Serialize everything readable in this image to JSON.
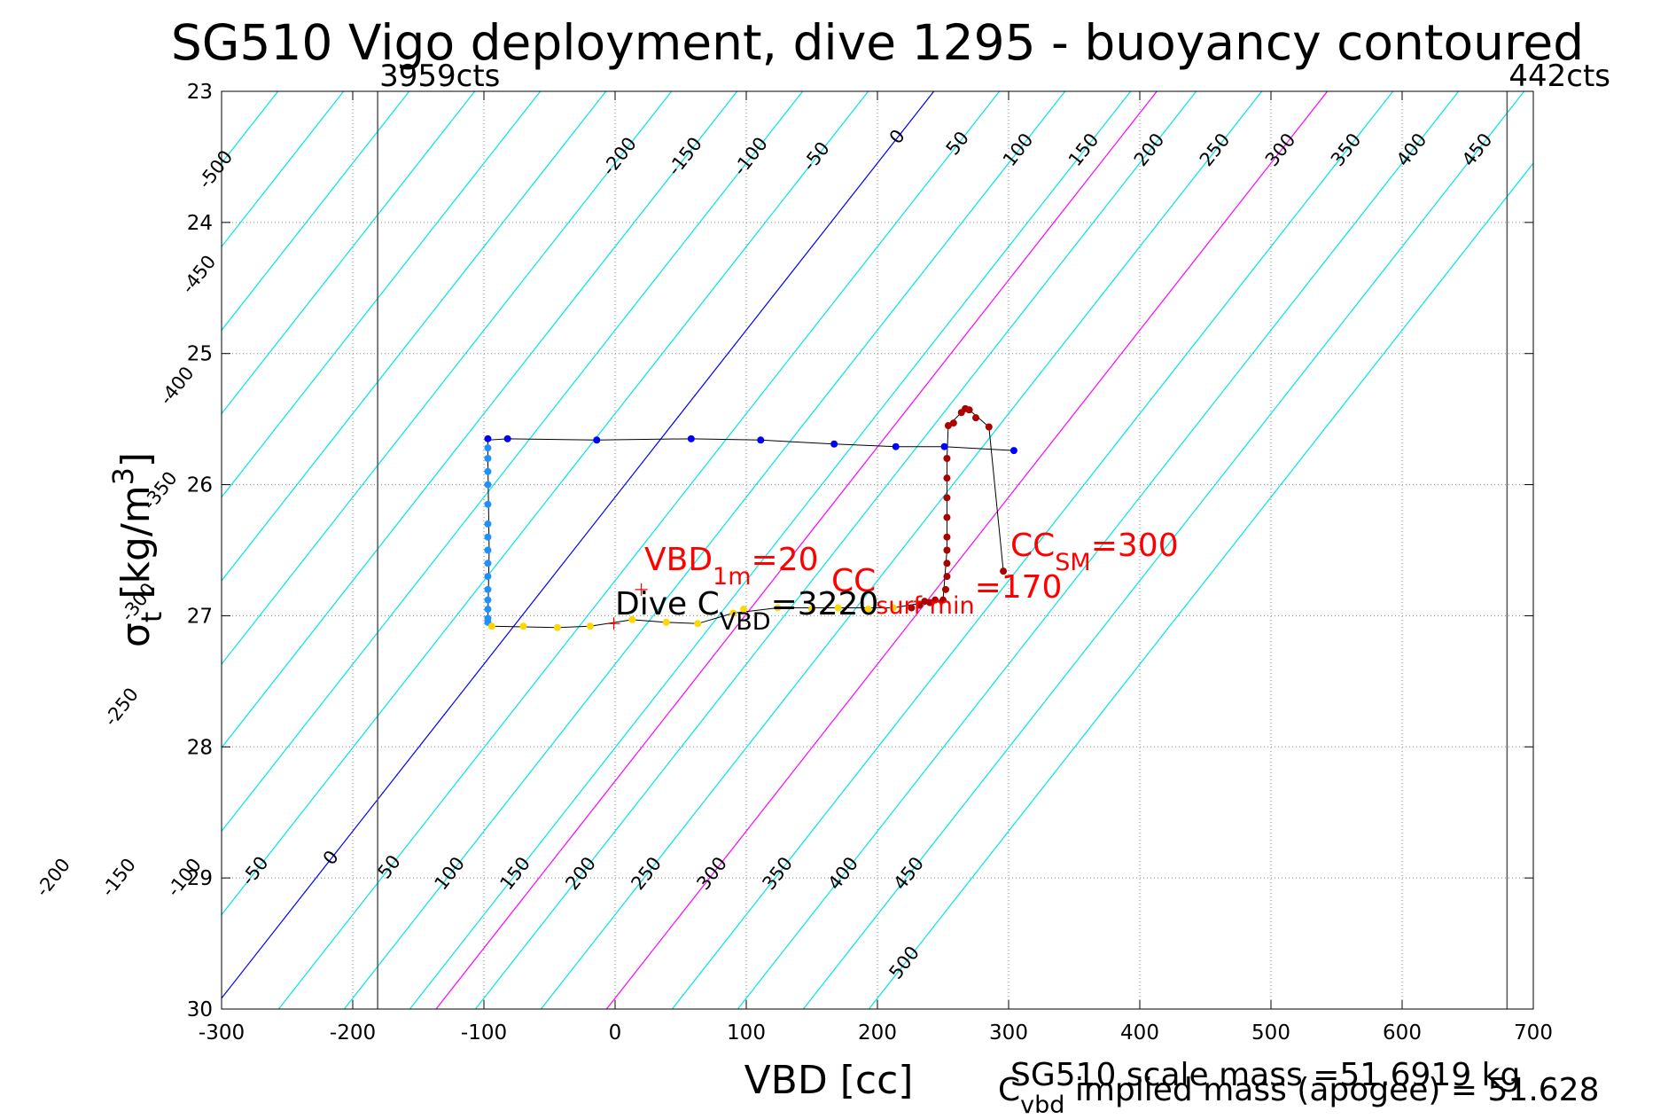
{
  "chart_data": {
    "type": "scatter",
    "title": "SG510 Vigo deployment, dive 1295 - buoyancy contoured",
    "xlabel": "VBD [cc]",
    "ylabel": {
      "base": "σ",
      "sub": "t",
      "rest": " [kg/m",
      "sup": "3",
      "close": "]"
    },
    "xlim": [
      -300,
      700
    ],
    "ylim": [
      30,
      23
    ],
    "xticks": [
      -300,
      -200,
      -100,
      0,
      100,
      200,
      300,
      400,
      500,
      600,
      700
    ],
    "yticks": [
      23,
      24,
      25,
      26,
      27,
      28,
      29,
      30
    ],
    "grid": true,
    "colors": {
      "contour": "#00e5e5",
      "zero_contour": "#0000ff",
      "limit_contour": "#ff00ff",
      "limit_line": "#555555",
      "down_points": "#0000ff",
      "down_points_deep": "#1e90ff",
      "bottom_points": "#ffd700",
      "up_points": "#aa0000",
      "path": "#000000",
      "annotation": "#ff0000"
    },
    "contours": {
      "values": [
        -500,
        -450,
        -400,
        -350,
        -300,
        -250,
        -200,
        -150,
        -100,
        -50,
        0,
        50,
        100,
        150,
        200,
        250,
        300,
        350,
        400,
        450,
        500
      ],
      "slope_cc_per_sigma": -78.5,
      "offset_at_sigma_23": 243,
      "highlight_zero": 0,
      "highlight_limits": [
        170,
        300
      ],
      "top_labels": [
        {
          "text": "-500",
          "value": -500,
          "sigma": 23.6
        },
        {
          "text": "-450",
          "value": -450,
          "sigma": 24.4
        },
        {
          "text": "-400",
          "value": -400,
          "sigma": 25.25
        },
        {
          "text": "-350",
          "value": -350,
          "sigma": 26.05
        },
        {
          "text": "-300",
          "value": -300,
          "sigma": 26.9
        },
        {
          "text": "-250",
          "value": -250,
          "sigma": 27.7
        },
        {
          "text": "-200",
          "value": -200,
          "sigma": 23.5
        },
        {
          "text": "-150",
          "value": -150,
          "sigma": 23.5
        },
        {
          "text": "-100",
          "value": -100,
          "sigma": 23.5
        },
        {
          "text": "-50",
          "value": -50,
          "sigma": 23.5
        },
        {
          "text": "0",
          "value": 0,
          "sigma": 23.35
        },
        {
          "text": "50",
          "value": 50,
          "sigma": 23.4
        },
        {
          "text": "100",
          "value": 100,
          "sigma": 23.45
        },
        {
          "text": "150",
          "value": 150,
          "sigma": 23.45
        },
        {
          "text": "200",
          "value": 200,
          "sigma": 23.45
        },
        {
          "text": "250",
          "value": 250,
          "sigma": 23.45
        },
        {
          "text": "300",
          "value": 300,
          "sigma": 23.45
        },
        {
          "text": "350",
          "value": 350,
          "sigma": 23.45
        },
        {
          "text": "400",
          "value": 400,
          "sigma": 23.45
        },
        {
          "text": "450",
          "value": 450,
          "sigma": 23.45
        }
      ],
      "bottom_labels": [
        {
          "text": "-200",
          "value": -200,
          "sigma": 29.0
        },
        {
          "text": "-150",
          "value": -150,
          "sigma": 29.0
        },
        {
          "text": "-100",
          "value": -100,
          "sigma": 29.0
        },
        {
          "text": "-50",
          "value": -50,
          "sigma": 28.95
        },
        {
          "text": "0",
          "value": 0,
          "sigma": 28.85
        },
        {
          "text": "50",
          "value": 50,
          "sigma": 28.92
        },
        {
          "text": "100",
          "value": 100,
          "sigma": 28.97
        },
        {
          "text": "150",
          "value": 150,
          "sigma": 28.97
        },
        {
          "text": "200",
          "value": 200,
          "sigma": 28.97
        },
        {
          "text": "250",
          "value": 250,
          "sigma": 28.97
        },
        {
          "text": "300",
          "value": 300,
          "sigma": 28.97
        },
        {
          "text": "350",
          "value": 350,
          "sigma": 28.97
        },
        {
          "text": "400",
          "value": 400,
          "sigma": 28.97
        },
        {
          "text": "450",
          "value": 450,
          "sigma": 28.97
        },
        {
          "text": "500",
          "value": 500,
          "sigma": 29.65
        }
      ]
    },
    "limits": [
      {
        "label": "3959cts",
        "vbd": -181
      },
      {
        "label": "442cts",
        "vbd": 680
      }
    ],
    "series": [
      {
        "kind": "down",
        "color": "down_points",
        "points": [
          [
            -97,
            25.65
          ],
          [
            -82,
            25.65
          ],
          [
            -14,
            25.66
          ],
          [
            58,
            25.65
          ],
          [
            111,
            25.66
          ],
          [
            167,
            25.69
          ],
          [
            214,
            25.71
          ],
          [
            251,
            25.71
          ],
          [
            304,
            25.74
          ]
        ]
      },
      {
        "kind": "down-deep",
        "color": "down_points_deep",
        "points": [
          [
            -97,
            25.72
          ],
          [
            -97,
            25.8
          ],
          [
            -97,
            25.9
          ],
          [
            -97,
            26.0
          ],
          [
            -97,
            26.15
          ],
          [
            -97,
            26.3
          ],
          [
            -97,
            26.4
          ],
          [
            -97,
            26.5
          ],
          [
            -97,
            26.6
          ],
          [
            -97,
            26.7
          ],
          [
            -97,
            26.8
          ],
          [
            -97,
            26.88
          ],
          [
            -97,
            26.95
          ],
          [
            -97,
            27.02
          ],
          [
            -97,
            27.05
          ]
        ]
      },
      {
        "kind": "bottom",
        "color": "bottom_points",
        "points": [
          [
            -94,
            27.08
          ],
          [
            -70,
            27.08
          ],
          [
            -44,
            27.09
          ],
          [
            -19,
            27.08
          ],
          [
            13,
            27.03
          ],
          [
            39,
            27.05
          ],
          [
            63,
            27.06
          ],
          [
            90,
            26.98
          ],
          [
            98,
            26.95
          ],
          [
            124,
            26.94
          ],
          [
            150,
            26.95
          ],
          [
            170,
            26.94
          ],
          [
            193,
            26.95
          ],
          [
            212,
            26.94
          ]
        ]
      },
      {
        "kind": "up",
        "color": "up_points",
        "points": [
          [
            226,
            26.94
          ],
          [
            232,
            26.92
          ],
          [
            236,
            26.89
          ],
          [
            240,
            26.9
          ],
          [
            244,
            26.88
          ],
          [
            250,
            26.88
          ],
          [
            252,
            26.8
          ],
          [
            253,
            26.7
          ],
          [
            253,
            26.6
          ],
          [
            253,
            26.5
          ],
          [
            253,
            26.4
          ],
          [
            253,
            26.25
          ],
          [
            253,
            26.1
          ],
          [
            253,
            25.95
          ],
          [
            253,
            25.8
          ],
          [
            254,
            25.55
          ],
          [
            258,
            25.53
          ],
          [
            264,
            25.45
          ],
          [
            267,
            25.42
          ],
          [
            270,
            25.43
          ],
          [
            275,
            25.49
          ],
          [
            285,
            25.56
          ],
          [
            296,
            26.66
          ]
        ]
      }
    ],
    "path": [
      [
        304,
        25.74
      ],
      [
        251,
        25.71
      ],
      [
        214,
        25.71
      ],
      [
        167,
        25.69
      ],
      [
        111,
        25.66
      ],
      [
        58,
        25.65
      ],
      [
        -14,
        25.66
      ],
      [
        -82,
        25.65
      ],
      [
        -97,
        25.66
      ],
      [
        -97,
        25.8
      ],
      [
        -96,
        26.5
      ],
      [
        -97,
        27.06
      ],
      [
        -94,
        27.08
      ],
      [
        -44,
        27.09
      ],
      [
        -19,
        27.08
      ],
      [
        13,
        27.03
      ],
      [
        39,
        27.05
      ],
      [
        63,
        27.06
      ],
      [
        90,
        26.98
      ],
      [
        124,
        26.94
      ],
      [
        170,
        26.94
      ],
      [
        212,
        26.94
      ],
      [
        236,
        26.9
      ],
      [
        250,
        26.88
      ],
      [
        253,
        26.5
      ],
      [
        253,
        25.8
      ],
      [
        254,
        25.55
      ],
      [
        264,
        25.45
      ],
      [
        270,
        25.43
      ],
      [
        285,
        25.56
      ],
      [
        296,
        26.66
      ]
    ],
    "markers": [
      {
        "label": "VBD1m",
        "vbd": 20,
        "sigma": 26.8
      },
      {
        "label": "DiveC",
        "vbd": -1,
        "sigma": 27.06
      }
    ],
    "annotations": {
      "vbd1m": {
        "main": "VBD",
        "sub": "1m",
        "tail": "=20"
      },
      "cc_min": {
        "main": "CC",
        "sub": "surf min",
        "tail": "=170"
      },
      "cc_sm": {
        "main": "CC",
        "sub": "SM",
        "tail": "=300"
      },
      "dive_c": {
        "main": "Dive C",
        "sub": "VBD",
        "tail": "=3220"
      }
    },
    "footer": {
      "scale_mass": "SG510 scale mass =51.6919 kg",
      "implied_main": "C",
      "implied_sub": "vbd",
      "implied_tail": " implied mass (apogee) = 51.628"
    }
  }
}
